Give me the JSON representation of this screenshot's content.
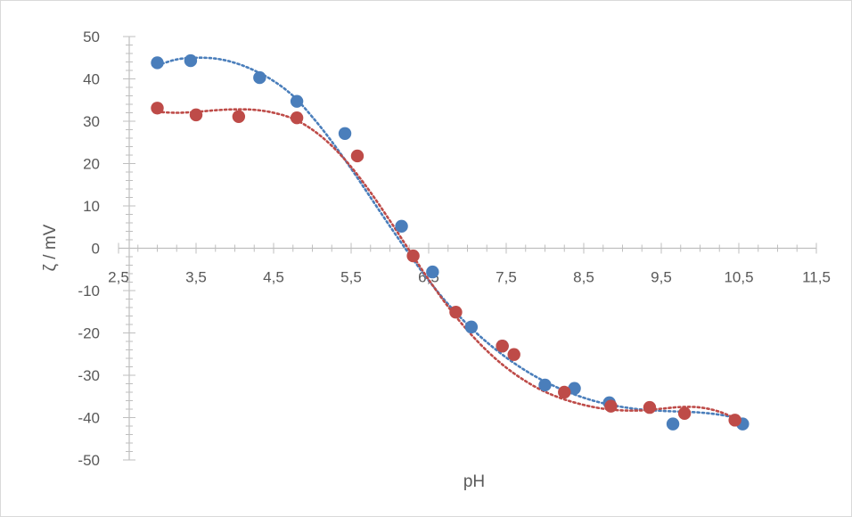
{
  "chart_data": {
    "type": "scatter",
    "title": "",
    "xlabel": "pH",
    "ylabel": "ζ / mV",
    "xlim": [
      2.5,
      11.5
    ],
    "ylim": [
      -50,
      50
    ],
    "x_ticks": [
      "2,5",
      "3,5",
      "4,5",
      "5,5",
      "6,5",
      "7,5",
      "8,5",
      "9,5",
      "10,5",
      "11,5"
    ],
    "y_ticks": [
      "50",
      "40",
      "30",
      "20",
      "10",
      "0",
      "-10",
      "-20",
      "-30",
      "-40",
      "-50"
    ],
    "grid": false,
    "legend": "none",
    "series": [
      {
        "color": "#4a7ebb",
        "trendline": "dotted polynomial",
        "points": [
          {
            "x": 3.0,
            "y": 43.8
          },
          {
            "x": 3.43,
            "y": 44.3
          },
          {
            "x": 4.32,
            "y": 40.3
          },
          {
            "x": 4.8,
            "y": 34.7
          },
          {
            "x": 5.42,
            "y": 27.1
          },
          {
            "x": 6.15,
            "y": 5.2
          },
          {
            "x": 6.55,
            "y": -5.6
          },
          {
            "x": 7.05,
            "y": -18.6
          },
          {
            "x": 7.45,
            "y": -23.1
          },
          {
            "x": 8.0,
            "y": -32.3
          },
          {
            "x": 8.38,
            "y": -33.1
          },
          {
            "x": 8.83,
            "y": -36.5
          },
          {
            "x": 9.65,
            "y": -41.5
          },
          {
            "x": 10.55,
            "y": -41.5
          }
        ],
        "trend": [
          [
            3.0,
            43.2
          ],
          [
            3.25,
            44.6
          ],
          [
            3.5,
            45.0
          ],
          [
            3.75,
            44.8
          ],
          [
            4.0,
            43.8
          ],
          [
            4.25,
            42.0
          ],
          [
            4.5,
            39.5
          ],
          [
            4.75,
            36.0
          ],
          [
            5.0,
            31.0
          ],
          [
            5.25,
            25.2
          ],
          [
            5.5,
            18.8
          ],
          [
            5.75,
            12.0
          ],
          [
            6.0,
            5.2
          ],
          [
            6.25,
            -1.4
          ],
          [
            6.5,
            -7.6
          ],
          [
            6.75,
            -13.2
          ],
          [
            7.0,
            -18.0
          ],
          [
            7.25,
            -22.2
          ],
          [
            7.5,
            -25.8
          ],
          [
            7.75,
            -28.9
          ],
          [
            8.0,
            -31.5
          ],
          [
            8.25,
            -33.6
          ],
          [
            8.5,
            -35.3
          ],
          [
            8.75,
            -36.6
          ],
          [
            9.0,
            -37.5
          ],
          [
            9.25,
            -38.1
          ],
          [
            9.5,
            -38.4
          ],
          [
            9.75,
            -38.6
          ],
          [
            10.0,
            -38.8
          ],
          [
            10.25,
            -39.3
          ],
          [
            10.5,
            -40.2
          ],
          [
            10.6,
            -40.8
          ]
        ]
      },
      {
        "color": "#be4b48",
        "trendline": "dotted polynomial",
        "points": [
          {
            "x": 3.0,
            "y": 33.1
          },
          {
            "x": 3.5,
            "y": 31.5
          },
          {
            "x": 4.05,
            "y": 31.1
          },
          {
            "x": 4.8,
            "y": 30.8
          },
          {
            "x": 5.58,
            "y": 21.8
          },
          {
            "x": 6.3,
            "y": -1.8
          },
          {
            "x": 6.85,
            "y": -15.1
          },
          {
            "x": 7.45,
            "y": -23.1
          },
          {
            "x": 7.6,
            "y": -25.1
          },
          {
            "x": 8.25,
            "y": -34.0
          },
          {
            "x": 8.85,
            "y": -37.3
          },
          {
            "x": 9.35,
            "y": -37.6
          },
          {
            "x": 9.8,
            "y": -39.0
          },
          {
            "x": 10.45,
            "y": -40.6
          }
        ],
        "trend": [
          [
            3.0,
            32.2
          ],
          [
            3.25,
            32.0
          ],
          [
            3.5,
            32.2
          ],
          [
            3.75,
            32.6
          ],
          [
            4.0,
            32.8
          ],
          [
            4.25,
            32.7
          ],
          [
            4.5,
            32.0
          ],
          [
            4.75,
            30.6
          ],
          [
            5.0,
            28.0
          ],
          [
            5.25,
            24.2
          ],
          [
            5.5,
            19.2
          ],
          [
            5.75,
            13.2
          ],
          [
            6.0,
            6.5
          ],
          [
            6.25,
            -0.5
          ],
          [
            6.5,
            -7.4
          ],
          [
            6.75,
            -13.8
          ],
          [
            7.0,
            -19.4
          ],
          [
            7.25,
            -24.2
          ],
          [
            7.5,
            -28.2
          ],
          [
            7.75,
            -31.4
          ],
          [
            8.0,
            -33.9
          ],
          [
            8.25,
            -35.7
          ],
          [
            8.5,
            -37.0
          ],
          [
            8.75,
            -37.9
          ],
          [
            9.0,
            -38.3
          ],
          [
            9.25,
            -38.3
          ],
          [
            9.5,
            -37.9
          ],
          [
            9.75,
            -37.5
          ],
          [
            10.0,
            -37.6
          ],
          [
            10.25,
            -38.6
          ],
          [
            10.5,
            -40.6
          ],
          [
            10.6,
            -41.6
          ]
        ]
      }
    ]
  }
}
